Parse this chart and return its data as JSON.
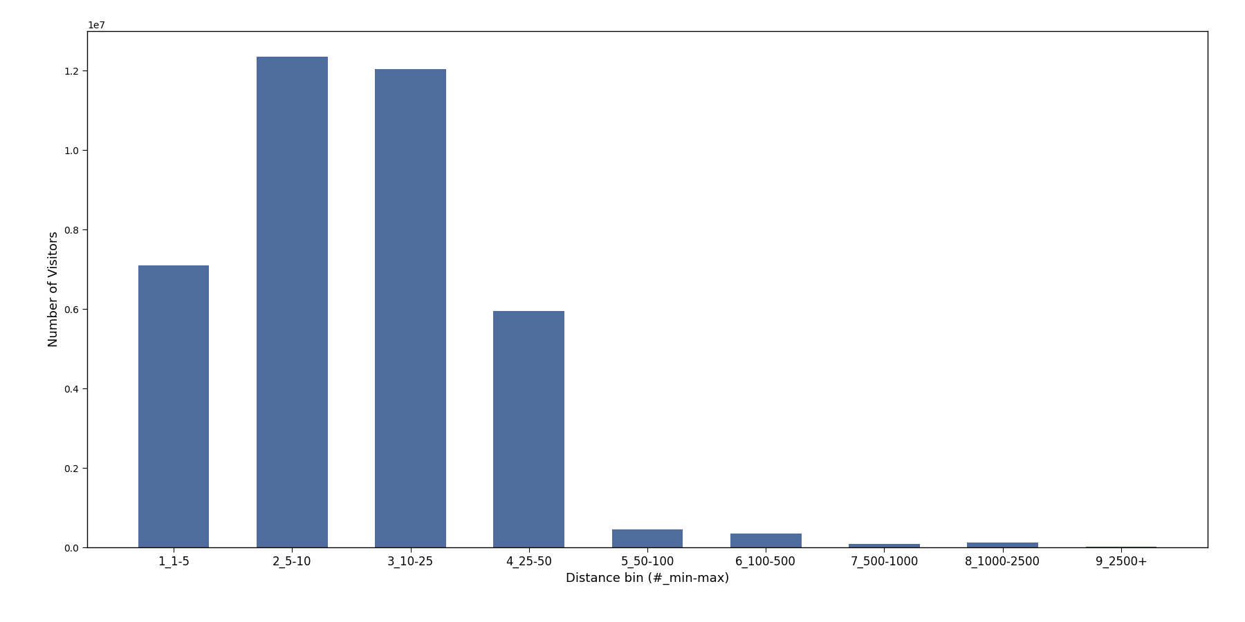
{
  "categories": [
    "1_1-5",
    "2_5-10",
    "3_10-25",
    "4_25-50",
    "5_50-100",
    "6_100-500",
    "7_500-1000",
    "8_1000-2500",
    "9_2500+"
  ],
  "values": [
    7100000,
    12350000,
    12050000,
    5950000,
    450000,
    350000,
    80000,
    120000,
    10000
  ],
  "bar_color": "#4e6d9e",
  "xlabel": "Distance bin (#_min-max)",
  "ylabel": "Number of Visitors",
  "ylim": [
    0,
    13000000
  ],
  "background_color": "#ffffff",
  "bar_width": 0.6,
  "figsize": [
    18.0,
    9.0
  ],
  "dpi": 100
}
